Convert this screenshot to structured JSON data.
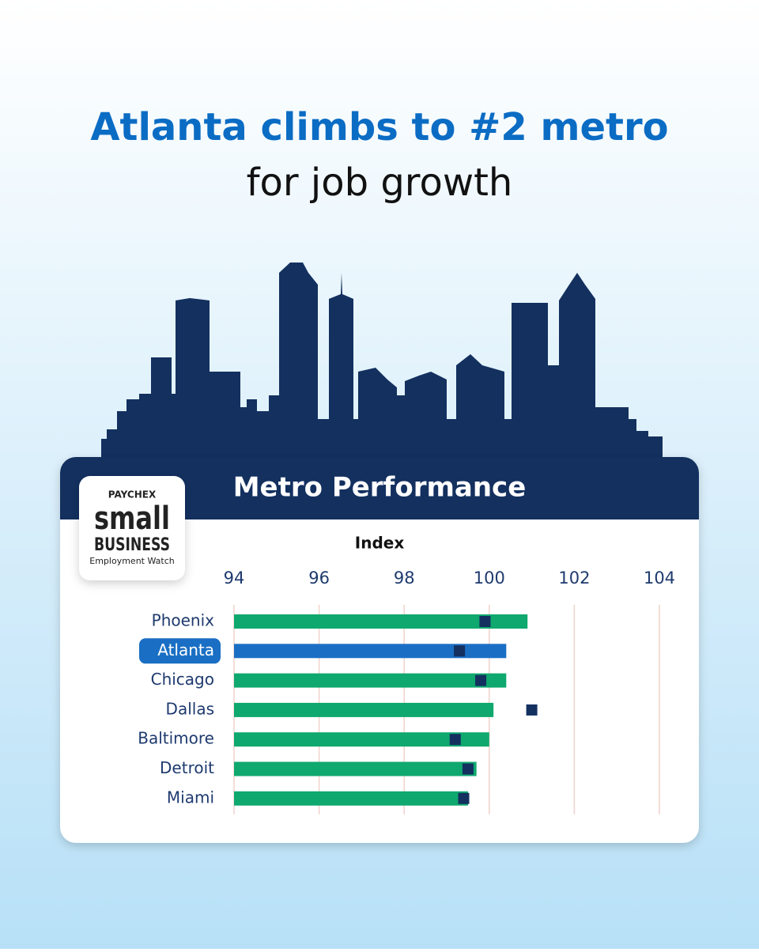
{
  "headline": {
    "line1": "Atlanta climbs to #2 metro",
    "line2": "for job growth"
  },
  "logo": {
    "brand": "PAYCHEX",
    "line1": "small",
    "line2": "BUSINESS",
    "line3": "Employment Watch"
  },
  "chart_data": {
    "type": "bar",
    "orientation": "horizontal",
    "title": "Metro Performance",
    "x_label": "Index",
    "categories": [
      "Phoenix",
      "Atlanta",
      "Chicago",
      "Dallas",
      "Baltimore",
      "Detroit",
      "Miami"
    ],
    "values": [
      100.9,
      100.4,
      100.4,
      100.1,
      100.0,
      99.7,
      99.5
    ],
    "marker_values": [
      99.9,
      99.3,
      99.8,
      101.0,
      99.2,
      99.5,
      99.4
    ],
    "color": "#0fa86e",
    "highlight_color": "#1a6fc4",
    "highlight_index": 1,
    "marker_color": "#13305f",
    "xlim": [
      94,
      104
    ],
    "xticks": [
      94,
      96,
      98,
      100,
      102,
      104
    ],
    "grid": true
  }
}
